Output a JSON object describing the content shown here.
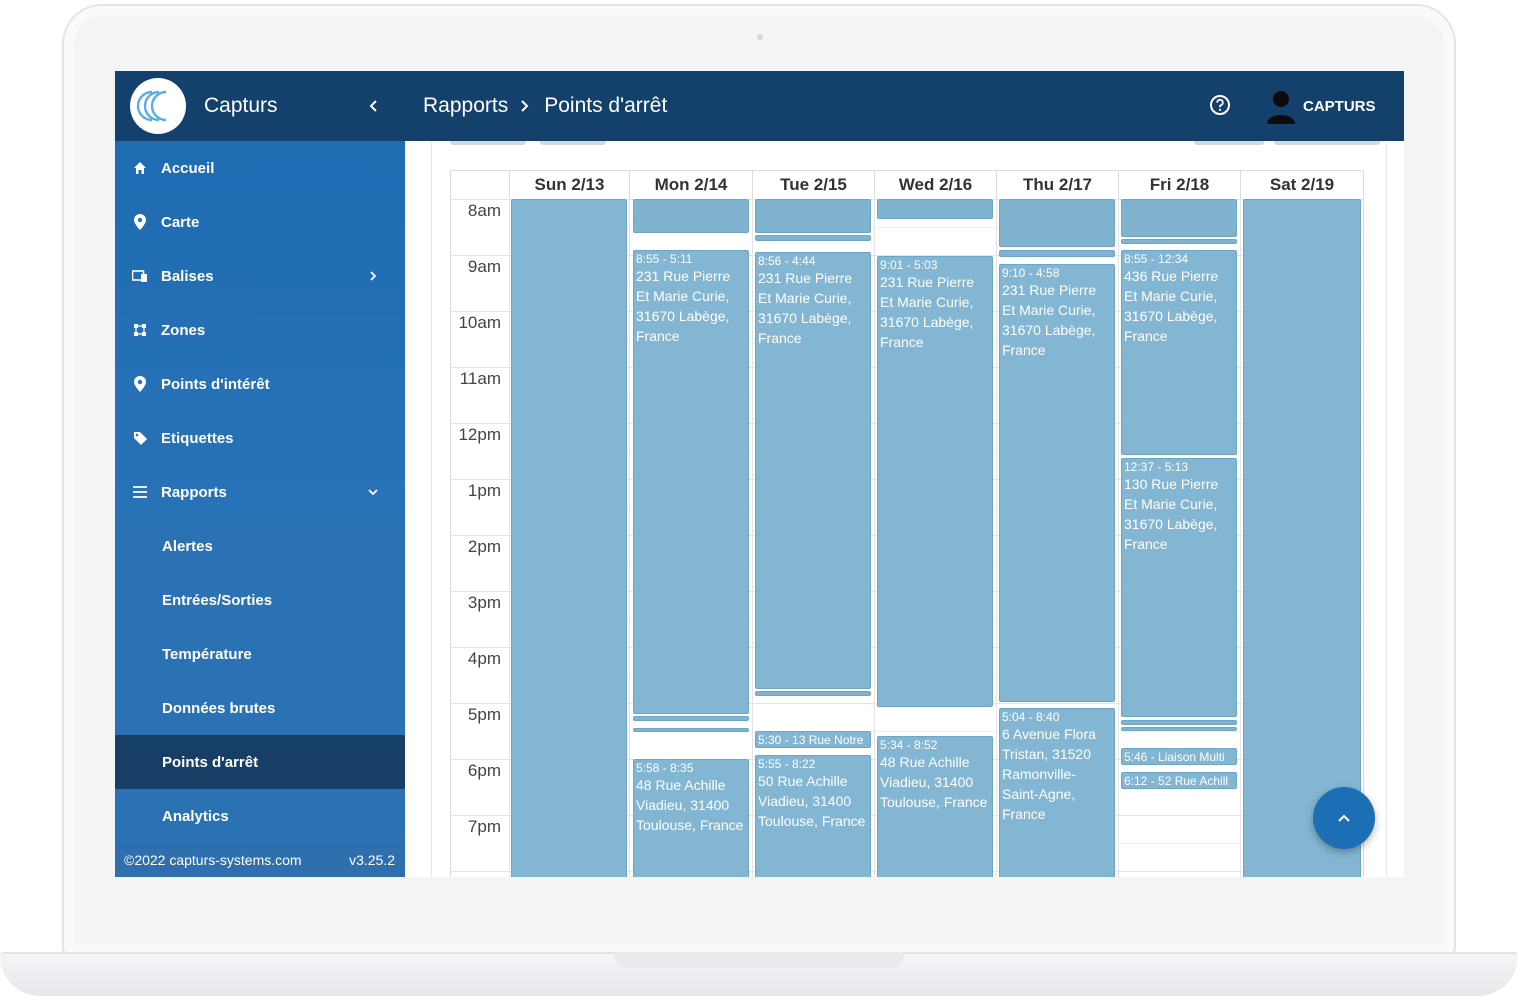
{
  "app": {
    "name": "Capturs"
  },
  "header": {
    "breadcrumb": [
      "Rapports",
      "Points d'arrêt"
    ],
    "user_name": "CAPTURS"
  },
  "sidebar": {
    "items": [
      {
        "label": "Accueil",
        "icon": "home-icon"
      },
      {
        "label": "Carte",
        "icon": "map-pin-icon"
      },
      {
        "label": "Balises",
        "icon": "devices-icon"
      },
      {
        "label": "Zones",
        "icon": "zones-icon"
      },
      {
        "label": "Points d'intérêt",
        "icon": "map-pin-icon"
      },
      {
        "label": "Etiquettes",
        "icon": "tag-icon"
      },
      {
        "label": "Rapports",
        "icon": "list-icon"
      }
    ],
    "sub_items": [
      {
        "label": "Alertes"
      },
      {
        "label": "Entrées/Sorties"
      },
      {
        "label": "Température"
      },
      {
        "label": "Données brutes"
      },
      {
        "label": "Points d'arrêt",
        "active": true
      },
      {
        "label": "Analytics"
      }
    ],
    "footer": {
      "copyright": "©2022 capturs-systems.com",
      "version": "v3.25.2"
    }
  },
  "calendar": {
    "days": [
      "Sun 2/13",
      "Mon 2/14",
      "Tue 2/15",
      "Wed 2/16",
      "Thu 2/17",
      "Fri 2/18",
      "Sat 2/19"
    ],
    "hours": [
      "8am",
      "9am",
      "10am",
      "11am",
      "12pm",
      "1pm",
      "2pm",
      "3pm",
      "4pm",
      "5pm",
      "6pm",
      "7pm"
    ],
    "events": {
      "mon_1": {
        "time": "8:55 - 5:11",
        "address": "231 Rue Pierre Et Marie Curie, 31670 Labège, France"
      },
      "mon_2": {
        "time": "5:58 - 8:35",
        "address": "48 Rue Achille Viadieu, 31400 Toulouse, France"
      },
      "tue_1": {
        "time": "8:56 - 4:44",
        "address": "231 Rue Pierre Et Marie Curie, 31670 Labège, France"
      },
      "tue_2": {
        "time": "5:30 - 13 Rue Notre"
      },
      "tue_3": {
        "time": "5:55 - 8:22",
        "address": "50 Rue Achille Viadieu, 31400 Toulouse, France"
      },
      "wed_1": {
        "time": "9:01 - 5:03",
        "address": "231 Rue Pierre Et Marie Curie, 31670 Labège, France"
      },
      "wed_2": {
        "time": "5:34 - 8:52",
        "address": "48 Rue Achille Viadieu, 31400 Toulouse, France"
      },
      "thu_1": {
        "time": "9:10 - 4:58",
        "address": "231 Rue Pierre Et Marie Curie, 31670 Labège, France"
      },
      "thu_2": {
        "time": "5:04 - 8:40",
        "address": "6 Avenue Flora Tristan, 31520 Ramonville-Saint-Agne, France"
      },
      "fri_1": {
        "time": "8:55 - 12:34",
        "address": "436 Rue Pierre Et Marie Curie, 31670 Labège, France"
      },
      "fri_2": {
        "time": "12:37 - 5:13",
        "address": "130 Rue Pierre Et Marie Curie, 31670 Labège, France"
      },
      "fri_3": {
        "time": "5:46 - Liaison Multi"
      },
      "fri_4": {
        "time": "6:12 - 52 Rue Achill"
      }
    }
  },
  "colors": {
    "header": "#13416b",
    "sidebar": "#1f6cb3",
    "active": "#173f66",
    "event": "#82b6d2",
    "fab": "#1d6fb5"
  }
}
